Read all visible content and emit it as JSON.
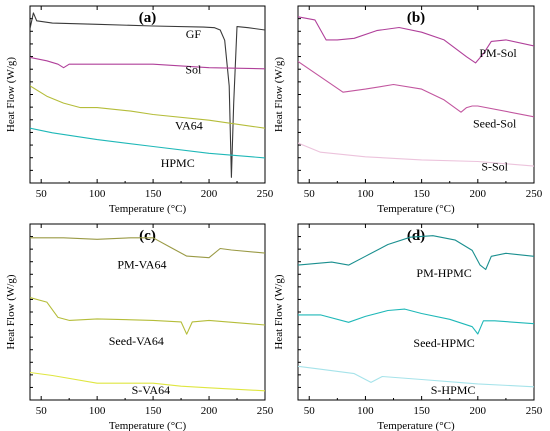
{
  "chart_data": [
    {
      "type": "line",
      "panel_label": "(a)",
      "xlabel": "Temperature (°C)",
      "ylabel": "Heat Flow (W/g)",
      "xlim": [
        40,
        250
      ],
      "x_ticks": [
        50,
        100,
        150,
        200,
        250
      ],
      "y_tick_count": 14,
      "y_tick_labels": "none",
      "series": [
        {
          "name": "GF",
          "color": "#3a3a3a",
          "points": [
            [
              40,
              2.5
            ],
            [
              43,
              3.9
            ],
            [
              46,
              3.2
            ],
            [
              60,
              3.0
            ],
            [
              100,
              2.9
            ],
            [
              150,
              2.75
            ],
            [
              195,
              2.65
            ],
            [
              205,
              2.6
            ],
            [
              210,
              2.4
            ],
            [
              214,
              1.5
            ],
            [
              218,
              -2.5
            ],
            [
              220,
              -10.5
            ],
            [
              222,
              -4.0
            ],
            [
              225,
              2.7
            ],
            [
              235,
              2.6
            ],
            [
              250,
              2.4
            ]
          ]
        },
        {
          "name": "Sol",
          "color": "#b0409a",
          "points": [
            [
              40,
              0.0
            ],
            [
              55,
              -0.3
            ],
            [
              65,
              -0.6
            ],
            [
              70,
              -0.9
            ],
            [
              75,
              -0.6
            ],
            [
              100,
              -0.6
            ],
            [
              150,
              -0.6
            ],
            [
              200,
              -0.9
            ],
            [
              250,
              -1.0
            ]
          ]
        },
        {
          "name": "VA64",
          "color": "#b5bd3a",
          "points": [
            [
              40,
              -2.5
            ],
            [
              55,
              -3.4
            ],
            [
              70,
              -4.0
            ],
            [
              85,
              -4.4
            ],
            [
              100,
              -4.4
            ],
            [
              130,
              -4.7
            ],
            [
              150,
              -5.0
            ],
            [
              200,
              -5.5
            ],
            [
              250,
              -6.2
            ]
          ]
        },
        {
          "name": "HPMC",
          "color": "#1fb8b8",
          "points": [
            [
              40,
              -6.2
            ],
            [
              60,
              -6.6
            ],
            [
              100,
              -7.2
            ],
            [
              150,
              -7.8
            ],
            [
              200,
              -8.4
            ],
            [
              250,
              -8.8
            ]
          ]
        }
      ]
    },
    {
      "type": "line",
      "panel_label": "(b)",
      "xlabel": "Temperature (°C)",
      "ylabel": "Heat Flow (W/g)",
      "xlim": [
        40,
        250
      ],
      "x_ticks": [
        50,
        100,
        150,
        200,
        250
      ],
      "y_tick_count": 14,
      "y_tick_labels": "none",
      "series": [
        {
          "name": "PM-Sol",
          "color": "#b0409a",
          "points": [
            [
              40,
              3.8
            ],
            [
              55,
              3.6
            ],
            [
              65,
              2.3
            ],
            [
              75,
              2.3
            ],
            [
              90,
              2.4
            ],
            [
              110,
              2.9
            ],
            [
              130,
              3.1
            ],
            [
              150,
              2.8
            ],
            [
              170,
              2.3
            ],
            [
              190,
              1.2
            ],
            [
              198,
              0.8
            ],
            [
              205,
              1.4
            ],
            [
              212,
              2.2
            ],
            [
              225,
              2.3
            ],
            [
              250,
              1.9
            ]
          ]
        },
        {
          "name": "Seed-Sol",
          "color": "#c2569f",
          "points": [
            [
              40,
              0.9
            ],
            [
              60,
              -0.1
            ],
            [
              80,
              -1.1
            ],
            [
              100,
              -0.9
            ],
            [
              125,
              -0.6
            ],
            [
              150,
              -0.9
            ],
            [
              170,
              -1.6
            ],
            [
              185,
              -2.4
            ],
            [
              190,
              -2.1
            ],
            [
              195,
              -2.0
            ],
            [
              200,
              -2.0
            ],
            [
              250,
              -2.7
            ]
          ]
        },
        {
          "name": "S-Sol",
          "color": "#ecc3dc",
          "points": [
            [
              40,
              -4.4
            ],
            [
              60,
              -5.0
            ],
            [
              100,
              -5.3
            ],
            [
              150,
              -5.5
            ],
            [
              200,
              -5.6
            ],
            [
              250,
              -5.9
            ]
          ]
        }
      ]
    },
    {
      "type": "line",
      "panel_label": "(c)",
      "xlabel": "Temperature (°C)",
      "ylabel": "Heat Flow (W/g)",
      "xlim": [
        40,
        250
      ],
      "x_ticks": [
        50,
        100,
        150,
        200,
        250
      ],
      "y_tick_count": 14,
      "y_tick_labels": "none",
      "series": [
        {
          "name": "PM-VA64",
          "color": "#9a9a45",
          "points": [
            [
              40,
              3.6
            ],
            [
              70,
              3.6
            ],
            [
              100,
              3.5
            ],
            [
              130,
              3.6
            ],
            [
              150,
              3.6
            ],
            [
              165,
              3.0
            ],
            [
              180,
              2.4
            ],
            [
              200,
              2.3
            ],
            [
              210,
              2.9
            ],
            [
              220,
              2.8
            ],
            [
              250,
              2.6
            ]
          ]
        },
        {
          "name": "Seed-VA64",
          "color": "#b5bd3a",
          "points": [
            [
              40,
              -0.3
            ],
            [
              55,
              -0.6
            ],
            [
              65,
              -1.6
            ],
            [
              75,
              -1.8
            ],
            [
              100,
              -1.7
            ],
            [
              150,
              -1.8
            ],
            [
              175,
              -1.9
            ],
            [
              180,
              -2.7
            ],
            [
              185,
              -1.9
            ],
            [
              200,
              -1.8
            ],
            [
              250,
              -2.1
            ]
          ]
        },
        {
          "name": "S-VA64",
          "color": "#dfe640",
          "points": [
            [
              40,
              -5.2
            ],
            [
              60,
              -5.4
            ],
            [
              100,
              -5.9
            ],
            [
              150,
              -5.9
            ],
            [
              175,
              -6.1
            ],
            [
              200,
              -6.2
            ],
            [
              250,
              -6.4
            ]
          ]
        }
      ]
    },
    {
      "type": "line",
      "panel_label": "(d)",
      "xlabel": "Temperature (°C)",
      "ylabel": "Heat Flow (W/g)",
      "xlim": [
        40,
        250
      ],
      "x_ticks": [
        50,
        100,
        150,
        200,
        250
      ],
      "y_tick_count": 14,
      "y_tick_labels": "none",
      "series": [
        {
          "name": "PM-HPMC",
          "color": "#1a8f8f",
          "points": [
            [
              40,
              2.2
            ],
            [
              70,
              2.4
            ],
            [
              85,
              2.2
            ],
            [
              100,
              2.8
            ],
            [
              120,
              3.6
            ],
            [
              140,
              4.1
            ],
            [
              160,
              4.2
            ],
            [
              180,
              3.9
            ],
            [
              195,
              3.2
            ],
            [
              202,
              2.2
            ],
            [
              207,
              1.9
            ],
            [
              212,
              2.8
            ],
            [
              225,
              3.0
            ],
            [
              250,
              2.8
            ]
          ]
        },
        {
          "name": "Seed-HPMC",
          "color": "#1fb8b8",
          "points": [
            [
              40,
              -1.2
            ],
            [
              60,
              -1.2
            ],
            [
              85,
              -1.7
            ],
            [
              100,
              -1.3
            ],
            [
              120,
              -0.9
            ],
            [
              135,
              -0.8
            ],
            [
              150,
              -1.1
            ],
            [
              175,
              -1.5
            ],
            [
              195,
              -2.0
            ],
            [
              200,
              -2.5
            ],
            [
              205,
              -1.6
            ],
            [
              215,
              -1.6
            ],
            [
              250,
              -1.8
            ]
          ]
        },
        {
          "name": "S-HPMC",
          "color": "#a6e3ea",
          "points": [
            [
              40,
              -4.7
            ],
            [
              60,
              -4.9
            ],
            [
              90,
              -5.2
            ],
            [
              105,
              -5.8
            ],
            [
              115,
              -5.4
            ],
            [
              150,
              -5.6
            ],
            [
              200,
              -5.9
            ],
            [
              250,
              -6.1
            ]
          ]
        }
      ]
    }
  ]
}
